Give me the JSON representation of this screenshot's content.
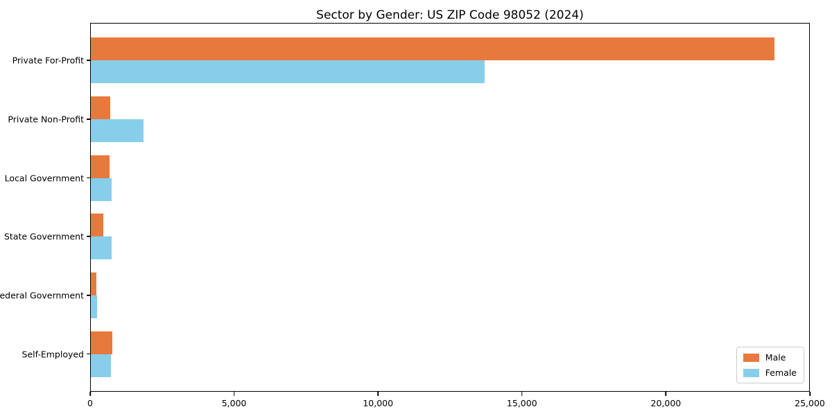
{
  "title": "Sector by Gender: US ZIP Code 98052 (2024)",
  "chart_data": {
    "type": "bar",
    "orientation": "horizontal",
    "title": "Sector by Gender: US ZIP Code 98052 (2024)",
    "categories": [
      "Private For-Profit",
      "Private Non-Profit",
      "Local Government",
      "State Government",
      "Federal Government",
      "Self-Employed"
    ],
    "series": [
      {
        "name": "Male",
        "color": "#e8793d",
        "values": [
          23800,
          670,
          650,
          430,
          190,
          760
        ]
      },
      {
        "name": "Female",
        "color": "#87ceeb",
        "values": [
          13700,
          1830,
          730,
          720,
          210,
          690
        ]
      }
    ],
    "xlabel": "",
    "ylabel": "",
    "xlim": [
      0,
      25000
    ],
    "xticks": [
      0,
      5000,
      10000,
      15000,
      20000,
      25000
    ],
    "xtick_labels": [
      "0",
      "5,000",
      "10,000",
      "15,000",
      "20,000",
      "25,000"
    ],
    "grid": false,
    "legend": {
      "position": "lower right",
      "entries": [
        "Male",
        "Female"
      ]
    }
  }
}
